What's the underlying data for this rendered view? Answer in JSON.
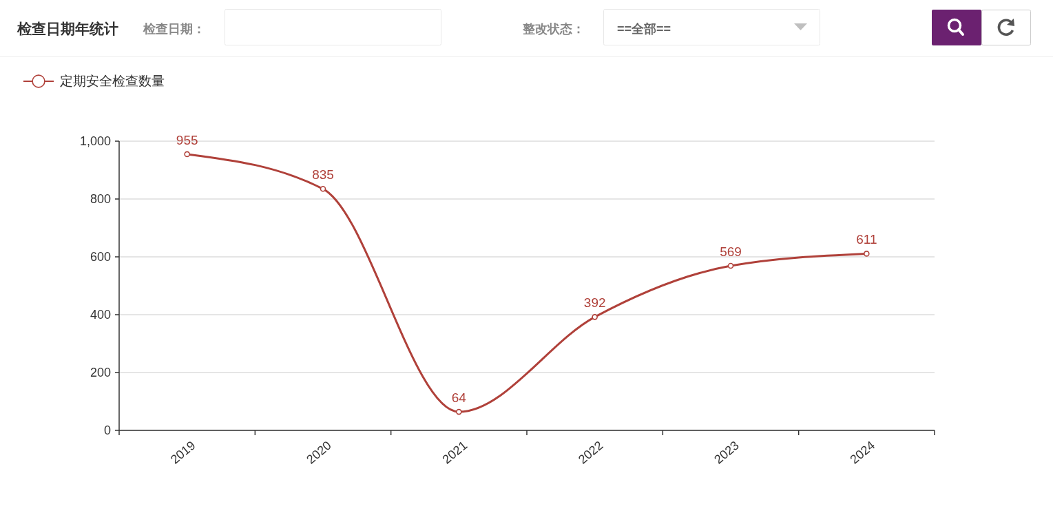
{
  "chart_data": {
    "type": "line",
    "title": "检查日期年统计",
    "annotations": [
      "检查日期：",
      "整改状态：",
      "==全部=="
    ],
    "categories": [
      "2019",
      "2020",
      "2021",
      "2022",
      "2023",
      "2024"
    ],
    "series": [
      {
        "name": "定期安全检查数量",
        "color": "#b0413a",
        "values": [
          955,
          835,
          64,
          392,
          569,
          611
        ]
      }
    ],
    "ylim": [
      0,
      1000
    ],
    "yticks": [
      0,
      200,
      400,
      600,
      800,
      {
        "value": 1000,
        "label": "1,000"
      }
    ],
    "grid": "y",
    "legend": "top left",
    "marker": "circle",
    "line_style": "solid",
    "data_labels": true
  }
}
